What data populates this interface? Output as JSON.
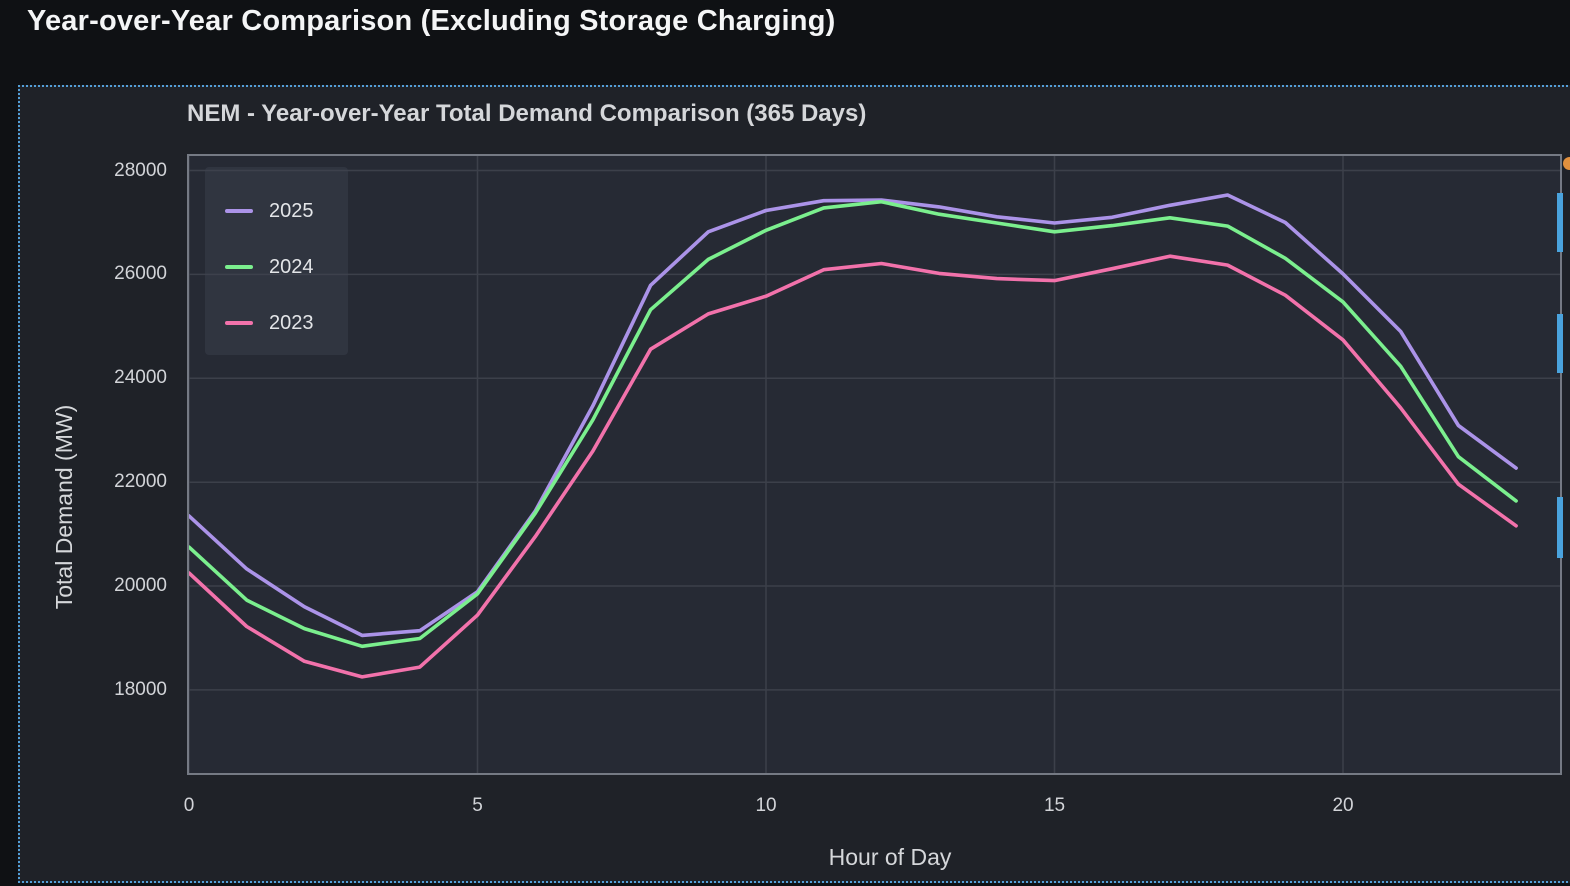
{
  "page": {
    "title": "Year-over-Year Comparison (Excluding Storage Charging)"
  },
  "chart_data": {
    "type": "line",
    "title": "NEM - Year-over-Year Total Demand Comparison (365 Days)",
    "xlabel": "Hour of Day",
    "ylabel": "Total Demand (MW)",
    "x": [
      0,
      1,
      2,
      3,
      4,
      5,
      6,
      7,
      8,
      9,
      10,
      11,
      12,
      13,
      14,
      15,
      16,
      17,
      18,
      19,
      20,
      21,
      22,
      23
    ],
    "series": [
      {
        "name": "2025",
        "color": "#ab93e8",
        "values": [
          21350,
          20330,
          19600,
          19050,
          19140,
          19890,
          21440,
          23470,
          25790,
          26820,
          27230,
          27420,
          27430,
          27300,
          27110,
          26990,
          27100,
          27330,
          27530,
          27000,
          26010,
          24900,
          23090,
          22270
        ]
      },
      {
        "name": "2024",
        "color": "#7bef8e",
        "values": [
          20750,
          19730,
          19180,
          18840,
          18990,
          19850,
          21400,
          23200,
          25320,
          26290,
          26850,
          27280,
          27400,
          27160,
          26990,
          26820,
          26940,
          27090,
          26930,
          26310,
          25470,
          24230,
          22490,
          21640
        ]
      },
      {
        "name": "2023",
        "color": "#f272ab",
        "values": [
          20250,
          19220,
          18550,
          18250,
          18440,
          19440,
          20950,
          22600,
          24560,
          25240,
          25580,
          26090,
          26210,
          26020,
          25920,
          25880,
          26110,
          26350,
          26180,
          25600,
          24740,
          23430,
          21960,
          21160
        ]
      }
    ],
    "xticks": [
      0,
      5,
      10,
      15,
      20
    ],
    "yticks": [
      18000,
      20000,
      22000,
      24000,
      26000,
      28000
    ],
    "xlim": [
      0,
      23.76
    ],
    "ylim": [
      16400,
      28280
    ],
    "grid": true,
    "legend_position": "upper-left"
  },
  "colors": {
    "page_background": "#0f1114",
    "panel_background": "#1f2228",
    "plot_background": "#262a34",
    "panel_border": "#539fd8",
    "gridline": "#3c404a",
    "spine": "#757a84",
    "clipped_bar_blue": "#4aa3dd",
    "clipped_dot_orange": "#e2913e"
  }
}
